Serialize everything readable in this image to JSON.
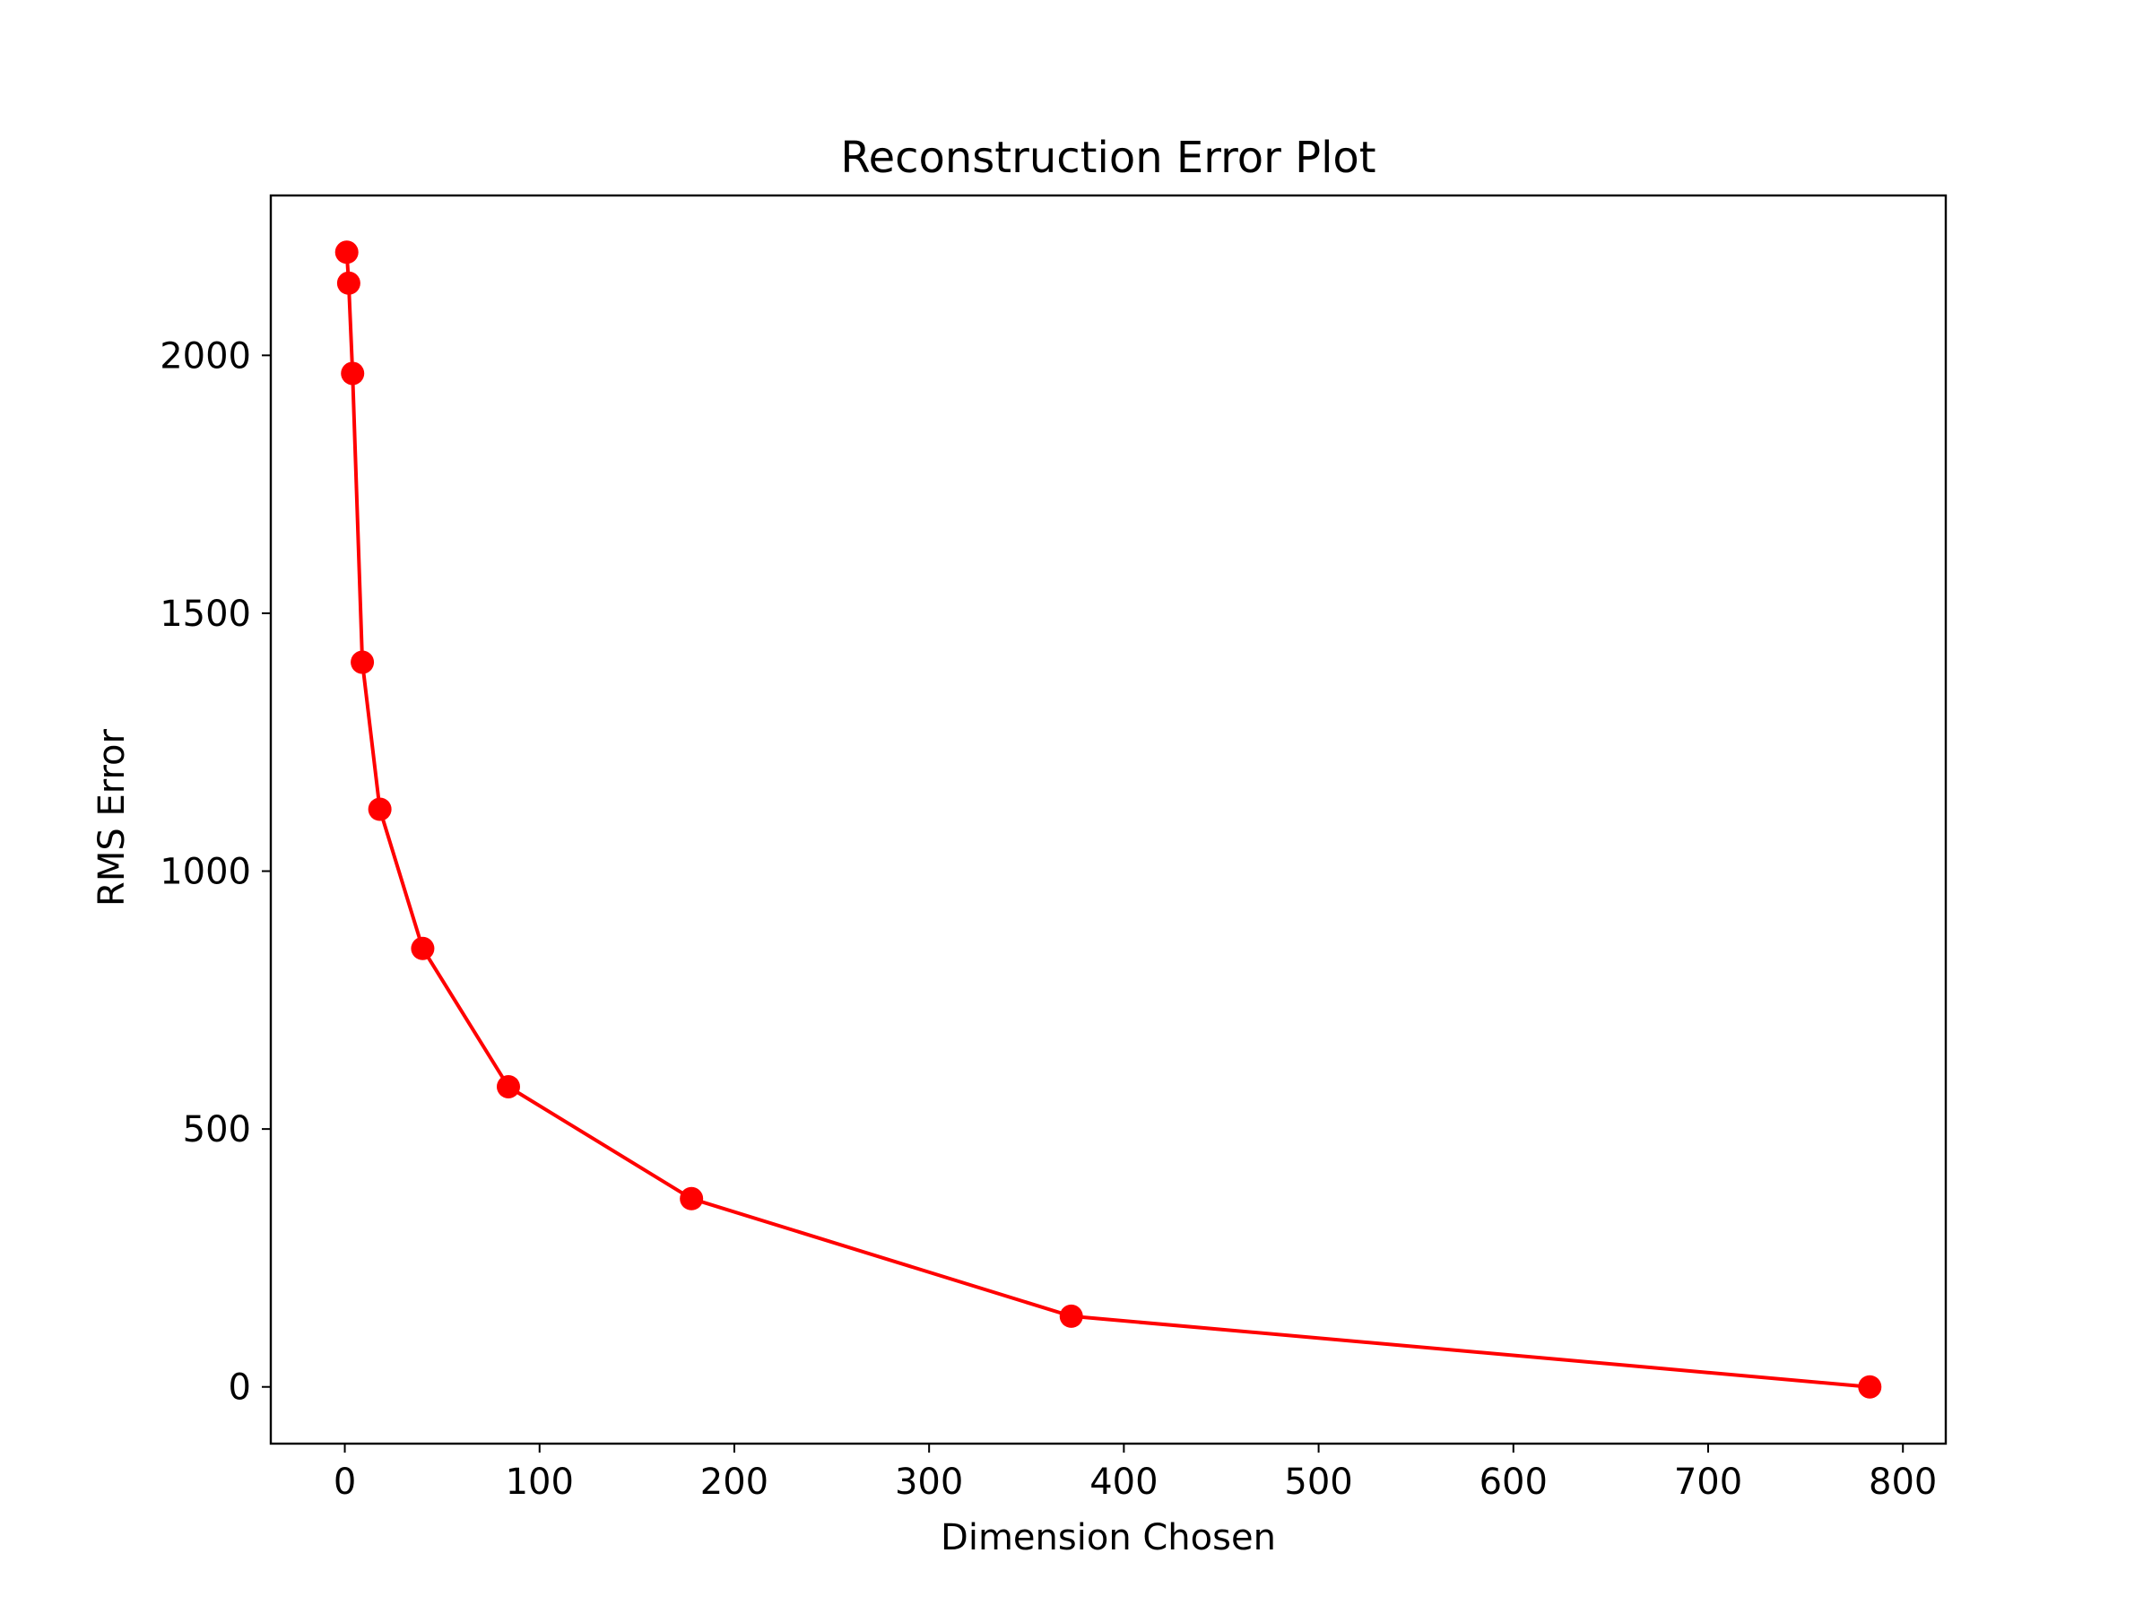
{
  "chart_data": {
    "type": "line",
    "title": "Reconstruction Error Plot",
    "xlabel": "Dimension Chosen",
    "ylabel": "RMS Error",
    "xlim": [
      -38,
      822
    ],
    "ylim": [
      -110,
      2310
    ],
    "x_ticks": [
      0,
      100,
      200,
      300,
      400,
      500,
      600,
      700,
      800
    ],
    "y_ticks": [
      0,
      500,
      1000,
      1500,
      2000
    ],
    "grid": false,
    "legend": "none",
    "series": [
      {
        "color": "#ff0000",
        "marker": "circle",
        "x": [
          1,
          2,
          4,
          9,
          18,
          40,
          84,
          178,
          373,
          783
        ],
        "y": [
          2200,
          2140,
          1965,
          1405,
          1120,
          850,
          582,
          365,
          137,
          0
        ]
      }
    ]
  }
}
